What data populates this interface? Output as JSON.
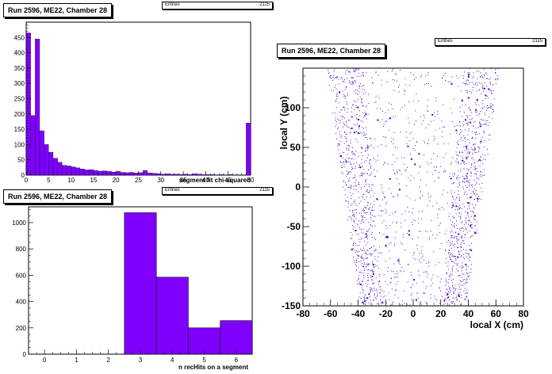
{
  "panels": [
    {
      "title": "Run 2596, ME22, Chamber 28",
      "stats": {
        "label": "Entries",
        "value": "2115"
      }
    },
    {
      "title": "Run 2596, ME22, Chamber 28",
      "stats": {
        "label": "Entries",
        "value": "2115"
      }
    },
    {
      "title": "Run 2596, ME22, Chamber 28",
      "stats": {
        "label": "Entries",
        "value": "2115"
      }
    }
  ],
  "chart_data": [
    {
      "type": "bar",
      "title": "Run 2596, ME22, Chamber 28",
      "xlabel": "segment fit chi-squared",
      "ylabel": "",
      "xlim": [
        0,
        50
      ],
      "ylim": [
        0,
        500
      ],
      "bin_width": 1,
      "bin_start": 0,
      "values": [
        465,
        195,
        445,
        145,
        100,
        75,
        55,
        42,
        32,
        30,
        27,
        24,
        20,
        17,
        18,
        15,
        13,
        14,
        12,
        10,
        12,
        9,
        8,
        9,
        7,
        8,
        15,
        7,
        6,
        5,
        3,
        4,
        3,
        3,
        2,
        3,
        2,
        4,
        3,
        2,
        2,
        2,
        1,
        2,
        1,
        2,
        1,
        1,
        1,
        170
      ],
      "xticks": [
        0,
        5,
        10,
        15,
        20,
        25,
        30,
        35,
        40,
        45,
        50
      ],
      "yticks": [
        0,
        50,
        100,
        150,
        200,
        250,
        300,
        350,
        400,
        450
      ],
      "fill": "#7f00ff"
    },
    {
      "type": "bar",
      "title": "Run 2596, ME22, Chamber 28",
      "xlabel": "n recHits on a segment",
      "ylabel": "",
      "xlim": [
        -0.5,
        6.5
      ],
      "ylim": [
        0,
        1120
      ],
      "categories": [
        "0",
        "1",
        "2",
        "3",
        "4",
        "5",
        "6"
      ],
      "values": [
        0,
        0,
        0,
        1075,
        585,
        200,
        255
      ],
      "xticks": [
        0,
        1,
        2,
        3,
        4,
        5,
        6
      ],
      "yticks": [
        0,
        200,
        400,
        600,
        800,
        1000
      ],
      "fill": "#7f00ff"
    },
    {
      "type": "scatter",
      "title": "Run 2596, ME22, Chamber 28",
      "xlabel": "local X (cm)",
      "ylabel": "local Y (cm)",
      "xlim": [
        -80,
        80
      ],
      "ylim": [
        -150,
        150
      ],
      "xticks": [
        -80,
        -60,
        -40,
        -20,
        0,
        20,
        40,
        60,
        80
      ],
      "yticks": [
        -150,
        -100,
        -50,
        0,
        50,
        100
      ],
      "ytick_labels": [
        "-150",
        "-100",
        "-50",
        "0",
        "50",
        "100"
      ],
      "region": {
        "top_half_width": 60,
        "bottom_half_width": 37
      },
      "n_points": 2115,
      "color": "#4400cc"
    }
  ]
}
